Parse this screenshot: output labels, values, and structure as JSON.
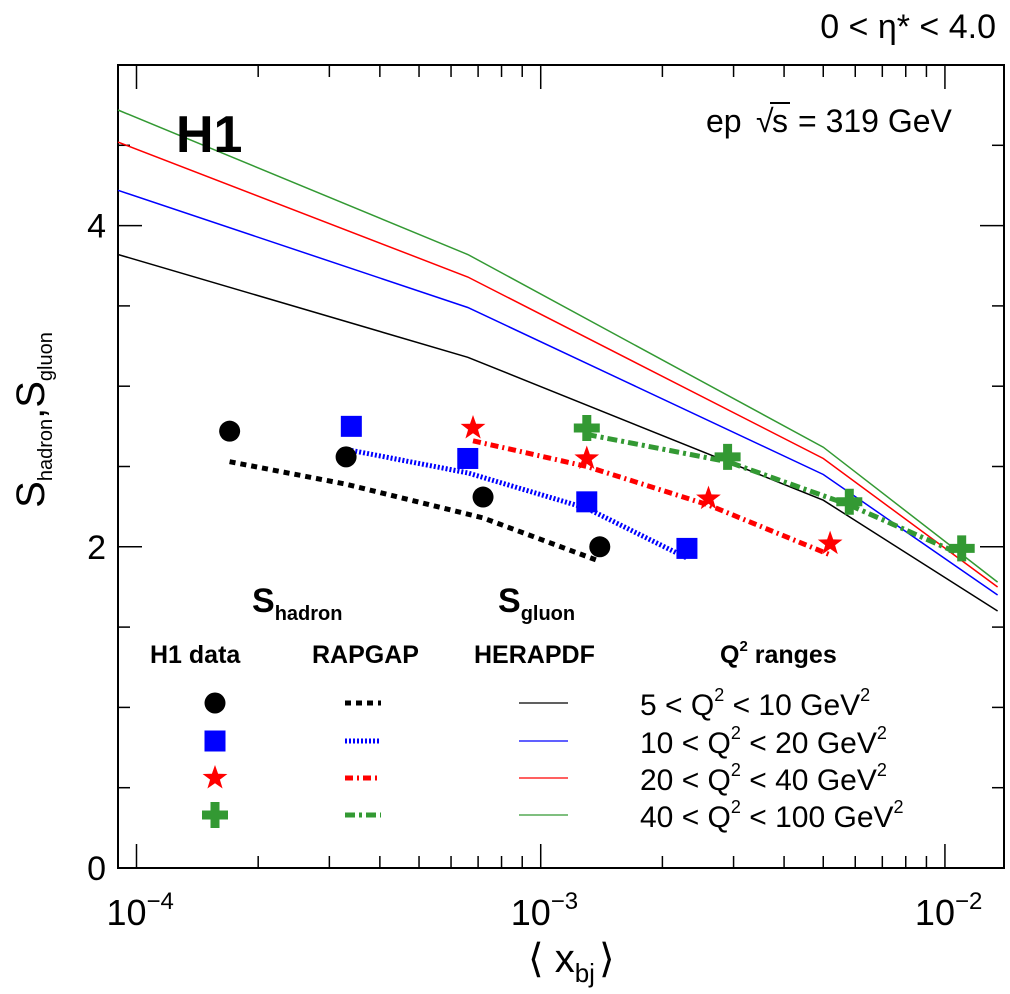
{
  "chart_data": {
    "type": "scatter",
    "xscale": "log",
    "xlim": [
      9e-05,
      0.014
    ],
    "ylim": [
      0,
      5.0
    ],
    "xlabel": "⟨ x",
    "xlabel_sub": "bj",
    "xlabel_close": "⟩",
    "ylabel_parts": {
      "s1": "S",
      "sub1": "hadron",
      "comma": ",",
      "s2": "S",
      "sub2": "gluon"
    },
    "x_ticks": [
      {
        "value": 0.0001,
        "base": "10",
        "exp": "−4"
      },
      {
        "value": 0.001,
        "base": "10",
        "exp": "−3"
      },
      {
        "value": 0.01,
        "base": "10",
        "exp": "−2"
      }
    ],
    "y_ticks": [
      {
        "value": 0,
        "label": "0"
      },
      {
        "value": 2,
        "label": "2"
      },
      {
        "value": 4,
        "label": "4"
      }
    ],
    "annotations": {
      "eta_range": "0 < η* < 4.0",
      "experiment": "H1",
      "beam_ep": "ep",
      "beam_sqrt": "√",
      "beam_s": "s",
      "beam_energy": "= 319 GeV",
      "s_hadron": "S",
      "s_hadron_sub": "hadron",
      "s_gluon": "S",
      "s_gluon_sub": "gluon"
    },
    "legend": {
      "headers": {
        "data": "H1 data",
        "rapgap": "RAPGAP",
        "herapdf": "HERAPDF",
        "q2_pre": "Q",
        "q2_exp": "2",
        "q2_post": " ranges"
      },
      "rows": [
        {
          "pre": "5 < Q",
          "mid": " < 10 GeV",
          "q_exp": "2",
          "gev_exp": "2"
        },
        {
          "pre": "10 < Q",
          "mid": " < 20 GeV",
          "q_exp": "2",
          "gev_exp": "2"
        },
        {
          "pre": "20 < Q",
          "mid": " < 40 GeV",
          "q_exp": "2",
          "gev_exp": "2"
        },
        {
          "pre": "40 < Q",
          "mid": " < 100 GeV",
          "q_exp": "2",
          "gev_exp": "2"
        }
      ]
    },
    "series": [
      {
        "marker": "circle",
        "color": "#000000",
        "dash": "6,5",
        "data": [
          {
            "x": 0.00017,
            "y": 2.72
          },
          {
            "x": 0.00033,
            "y": 2.56
          },
          {
            "x": 0.00072,
            "y": 2.31
          },
          {
            "x": 0.0014,
            "y": 2.0
          }
        ],
        "rapgap": [
          {
            "x": 0.00017,
            "y": 2.53
          },
          {
            "x": 0.00033,
            "y": 2.39
          },
          {
            "x": 0.00072,
            "y": 2.18
          },
          {
            "x": 0.0014,
            "y": 1.91
          }
        ],
        "herapdf": [
          {
            "x": 9e-05,
            "y": 3.82
          },
          {
            "x": 0.00066,
            "y": 3.18
          },
          {
            "x": 0.005,
            "y": 2.29
          },
          {
            "x": 0.0135,
            "y": 1.6
          }
        ]
      },
      {
        "marker": "square",
        "color": "#0000ff",
        "dash": "2,2",
        "data": [
          {
            "x": 0.00034,
            "y": 2.75
          },
          {
            "x": 0.00066,
            "y": 2.55
          },
          {
            "x": 0.0013,
            "y": 2.28
          },
          {
            "x": 0.0023,
            "y": 1.99
          }
        ],
        "rapgap": [
          {
            "x": 0.00034,
            "y": 2.6
          },
          {
            "x": 0.00066,
            "y": 2.46
          },
          {
            "x": 0.0013,
            "y": 2.24
          },
          {
            "x": 0.0023,
            "y": 1.93
          }
        ],
        "herapdf": [
          {
            "x": 9e-05,
            "y": 4.22
          },
          {
            "x": 0.00066,
            "y": 3.49
          },
          {
            "x": 0.005,
            "y": 2.45
          },
          {
            "x": 0.0135,
            "y": 1.7
          }
        ]
      },
      {
        "marker": "star",
        "color": "#ff0000",
        "dash": "8,4,2,4",
        "data": [
          {
            "x": 0.00068,
            "y": 2.74
          },
          {
            "x": 0.0013,
            "y": 2.55
          },
          {
            "x": 0.0026,
            "y": 2.3
          },
          {
            "x": 0.0052,
            "y": 2.02
          }
        ],
        "rapgap": [
          {
            "x": 0.00068,
            "y": 2.66
          },
          {
            "x": 0.0013,
            "y": 2.5
          },
          {
            "x": 0.0026,
            "y": 2.26
          },
          {
            "x": 0.0052,
            "y": 1.95
          }
        ],
        "herapdf": [
          {
            "x": 9e-05,
            "y": 4.52
          },
          {
            "x": 0.00066,
            "y": 3.68
          },
          {
            "x": 0.005,
            "y": 2.55
          },
          {
            "x": 0.0135,
            "y": 1.75
          }
        ]
      },
      {
        "marker": "cross",
        "color": "#339933",
        "dash": "10,4,3,4",
        "data": [
          {
            "x": 0.0013,
            "y": 2.74
          },
          {
            "x": 0.0029,
            "y": 2.56
          },
          {
            "x": 0.0058,
            "y": 2.28
          },
          {
            "x": 0.011,
            "y": 1.99
          }
        ],
        "rapgap": [
          {
            "x": 0.0013,
            "y": 2.7
          },
          {
            "x": 0.0029,
            "y": 2.53
          },
          {
            "x": 0.0058,
            "y": 2.26
          },
          {
            "x": 0.011,
            "y": 1.95
          }
        ],
        "herapdf": [
          {
            "x": 9e-05,
            "y": 4.72
          },
          {
            "x": 0.00066,
            "y": 3.82
          },
          {
            "x": 0.005,
            "y": 2.62
          },
          {
            "x": 0.0135,
            "y": 1.78
          }
        ]
      }
    ]
  }
}
